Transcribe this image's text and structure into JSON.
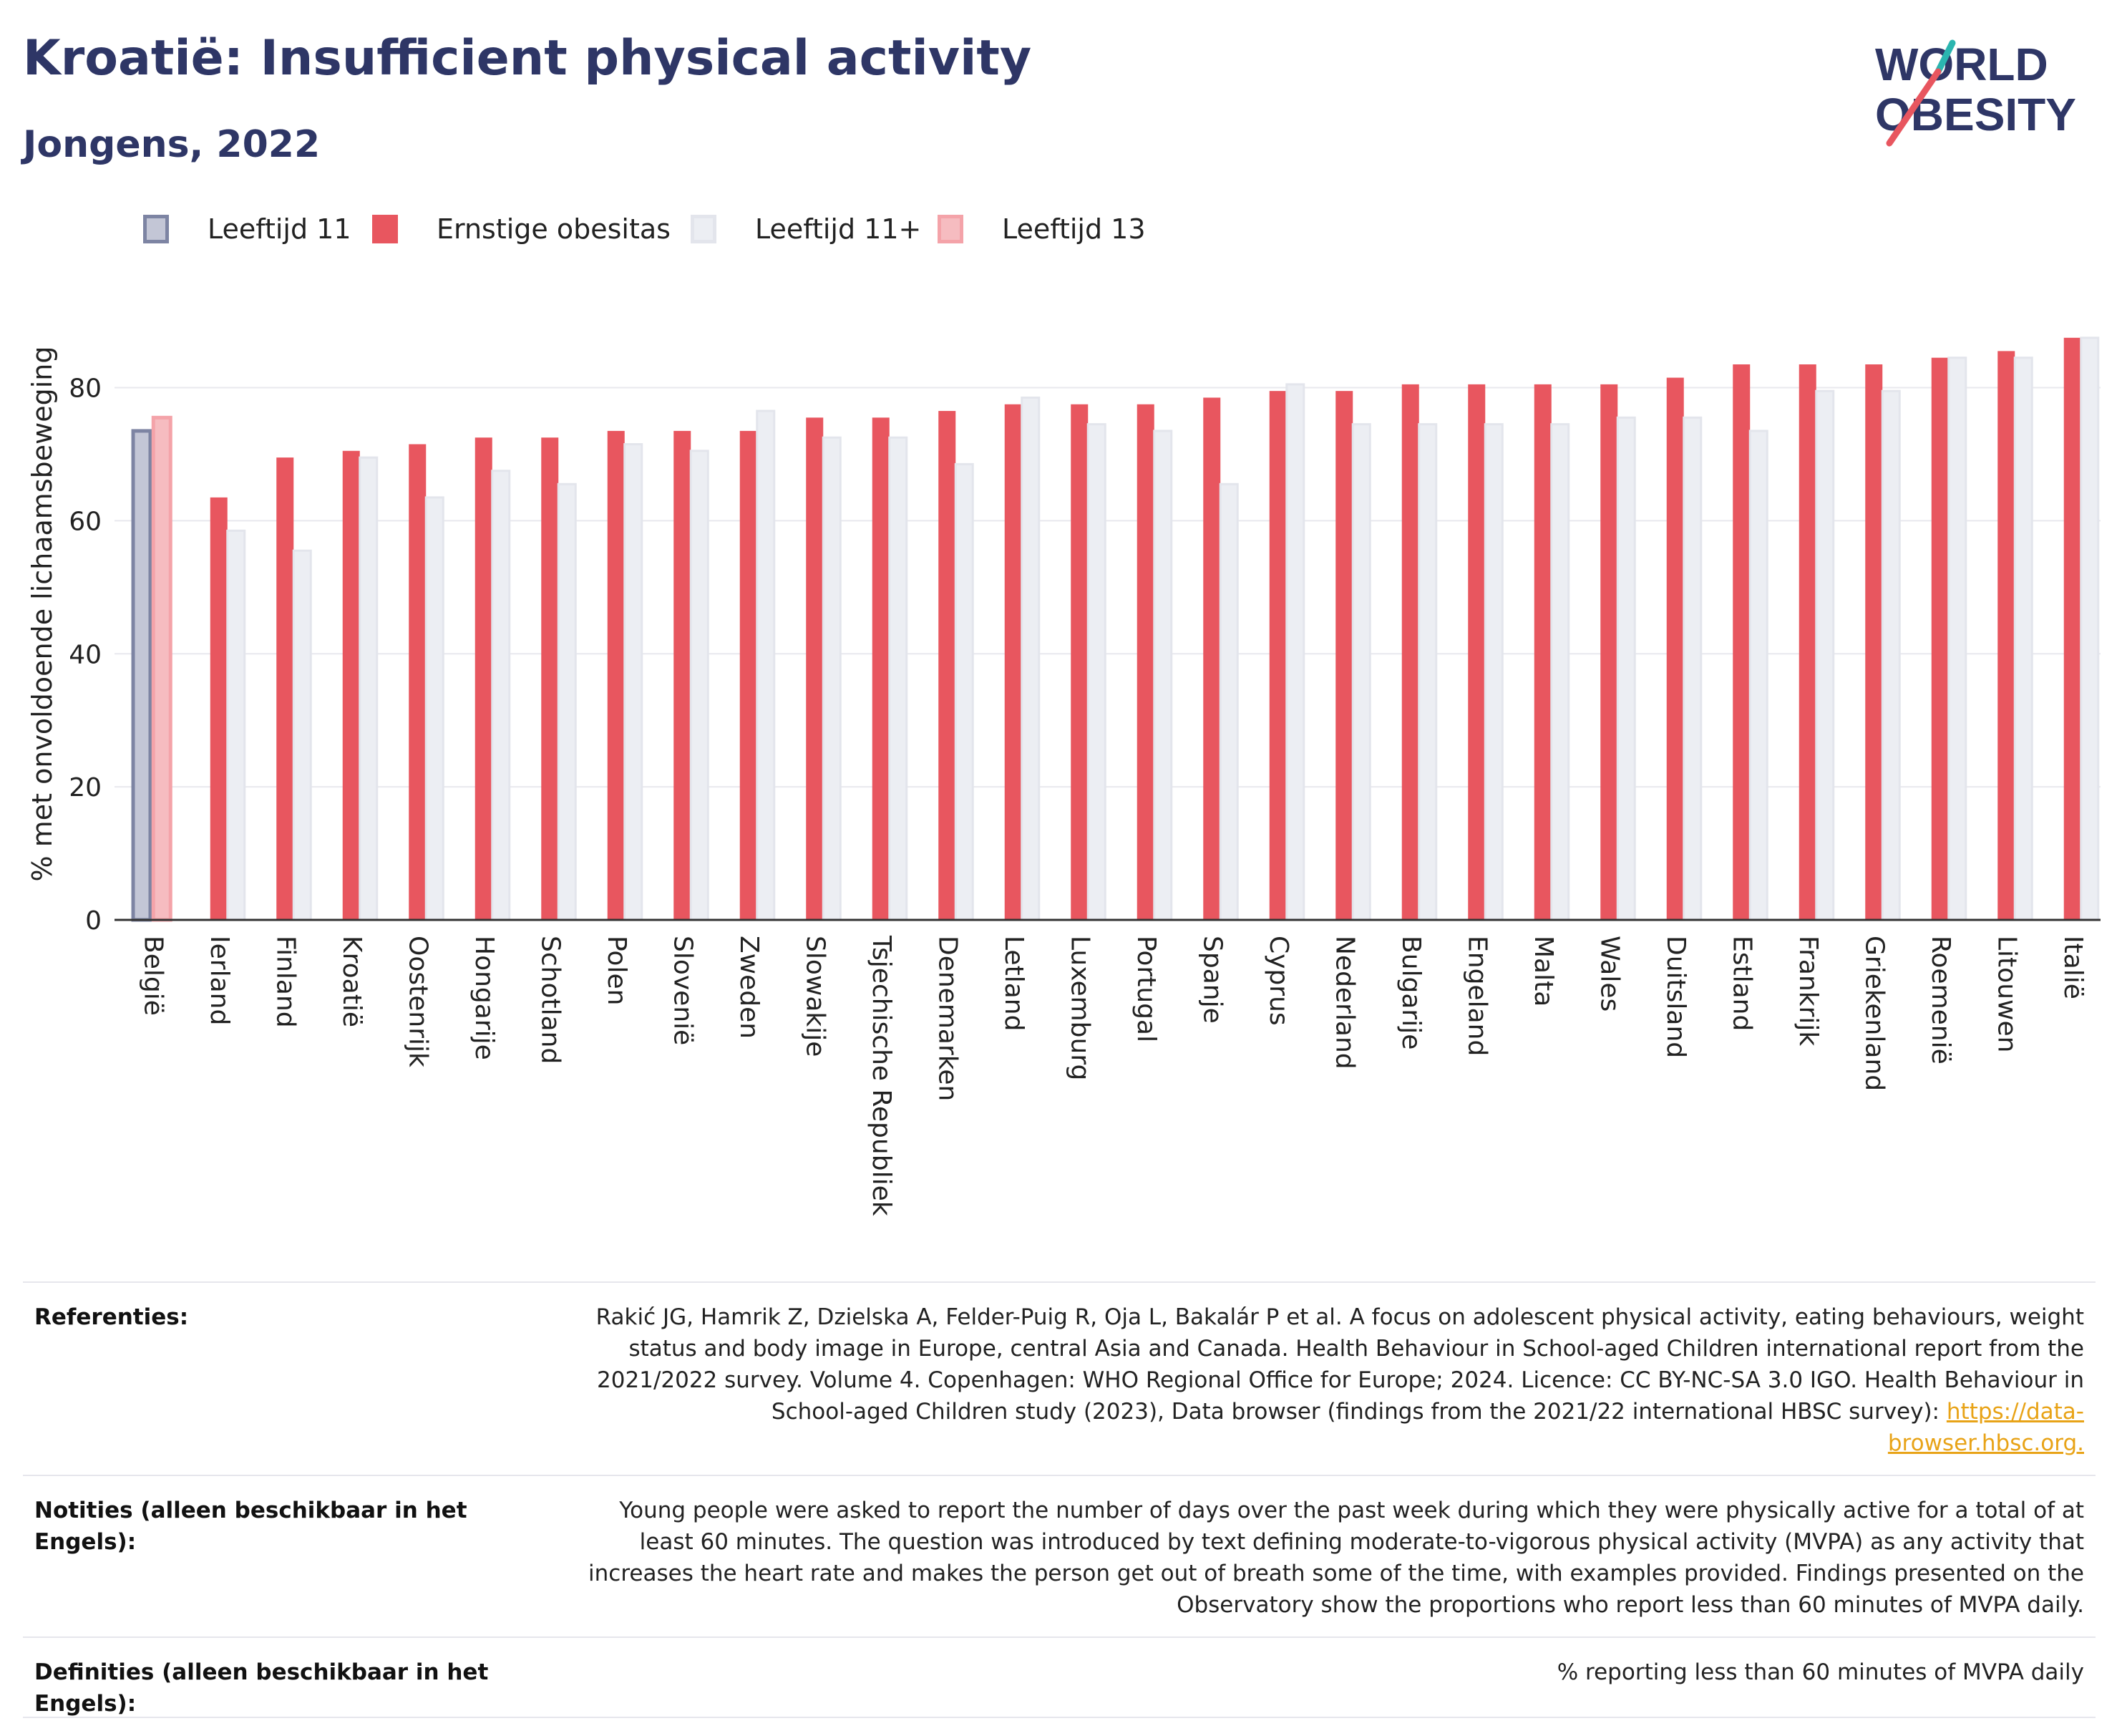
{
  "title": "Kroatië: Insufficient physical activity",
  "subtitle": "Jongens, 2022",
  "logo": {
    "line1": "WORLD",
    "line2": "OBESITY"
  },
  "legend": [
    {
      "label": "Leeftijd 11",
      "color": "#c3c6d6",
      "border": "#7d84a3"
    },
    {
      "label": "Ernstige obesitas",
      "color": "#e8565f",
      "border": "#e8565f"
    },
    {
      "label": "Leeftijd 11+",
      "color": "#eceef3",
      "border": "#e3e5ec"
    },
    {
      "label": "Leeftijd 13",
      "color": "#f6bcc0",
      "border": "#f4a3a9"
    }
  ],
  "chart_data": {
    "type": "bar",
    "ylabel": "% met onvoldoende lichaamsbeweging",
    "ylim": [
      0,
      92
    ],
    "yticks": [
      0,
      20,
      40,
      60,
      80
    ],
    "grid": true,
    "categories": [
      "België",
      "Ierland",
      "Finland",
      "Kroatië",
      "Oostenrijk",
      "Hongarije",
      "Schotland",
      "Polen",
      "Slovenië",
      "Zweden",
      "Slowakije",
      "Tsjechische Republiek",
      "Denemarken",
      "Letland",
      "Luxemburg",
      "Portugal",
      "Spanje",
      "Cyprus",
      "Nederland",
      "Bulgarije",
      "Engeland",
      "Malta",
      "Wales",
      "Duitsland",
      "Estland",
      "Frankrijk",
      "Griekenland",
      "Roemenië",
      "Litouwen",
      "Italië"
    ],
    "series": [
      {
        "name": "Leeftijd 11",
        "values": [
          73.5,
          null,
          null,
          null,
          null,
          null,
          null,
          null,
          null,
          null,
          null,
          null,
          null,
          null,
          null,
          null,
          null,
          null,
          null,
          null,
          null,
          null,
          null,
          null,
          null,
          null,
          null,
          null,
          null,
          null
        ]
      },
      {
        "name": "Leeftijd 13",
        "values": [
          75.5,
          null,
          null,
          null,
          null,
          null,
          null,
          null,
          null,
          null,
          null,
          null,
          null,
          null,
          null,
          null,
          null,
          null,
          null,
          null,
          null,
          null,
          null,
          null,
          null,
          null,
          null,
          null,
          null,
          null
        ]
      },
      {
        "name": "Ernstige obesitas",
        "values": [
          null,
          63.5,
          69.5,
          70.5,
          71.5,
          72.5,
          72.5,
          73.5,
          73.5,
          73.5,
          75.5,
          75.5,
          76.5,
          77.5,
          77.5,
          77.5,
          78.5,
          79.5,
          79.5,
          80.5,
          80.5,
          80.5,
          80.5,
          81.5,
          83.5,
          83.5,
          83.5,
          84.5,
          85.5,
          87.5
        ]
      },
      {
        "name": "Leeftijd 11+",
        "values": [
          null,
          58.5,
          55.5,
          69.5,
          63.5,
          67.5,
          65.5,
          71.5,
          70.5,
          76.5,
          72.5,
          72.5,
          68.5,
          78.5,
          74.5,
          73.5,
          65.5,
          80.5,
          74.5,
          74.5,
          74.5,
          74.5,
          75.5,
          75.5,
          73.5,
          79.5,
          79.5,
          84.5,
          84.5,
          87.5
        ]
      }
    ]
  },
  "references": [
    {
      "label": "Referenties:",
      "text": "Rakić JG, Hamrik Z, Dzielska A, Felder-Puig R, Oja L, Bakalár P et al. A focus on adolescent physical activity, eating behaviours, weight status and body image in Europe, central Asia and Canada. Health Behaviour in School-aged Children international report from the 2021/2022 survey. Volume 4. Copenhagen: WHO Regional Office for Europe; 2024. Licence: CC BY-NC-SA 3.0 IGO. Health Behaviour in School-aged Children study (2023), Data browser (findings from the 2021/22 international HBSC survey): ",
      "link": "https://data-browser.hbsc.org."
    },
    {
      "label": "Notities (alleen beschikbaar in het Engels):",
      "text": "Young people were asked to report the number of days over the past week during which they were physically active for a total of at least 60 minutes. The question was introduced by text defining moderate-to-vigorous physical activity (MVPA) as any activity that increases the heart rate and makes the person get out of breath some of the time, with examples provided. Findings presented on the Observatory show the proportions who report less than 60 minutes of MVPA daily."
    },
    {
      "label": "Definities (alleen beschikbaar in het Engels):",
      "text": "% reporting less than 60 minutes of MVPA daily"
    }
  ]
}
